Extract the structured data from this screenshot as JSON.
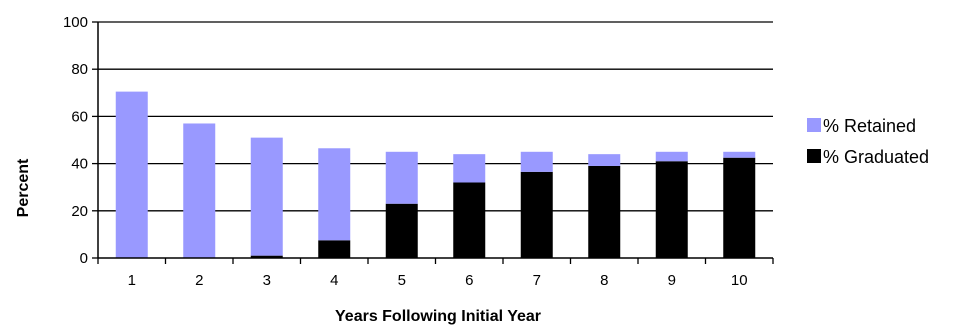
{
  "chart_data": {
    "type": "bar",
    "stacked": true,
    "categories": [
      "1",
      "2",
      "3",
      "4",
      "5",
      "6",
      "7",
      "8",
      "9",
      "10"
    ],
    "series": [
      {
        "name": "% Graduated",
        "color": "#000000",
        "values": [
          0,
          0,
          1,
          7.5,
          23,
          32,
          36.5,
          39,
          41,
          42.5
        ]
      },
      {
        "name": "% Retained",
        "color": "#9999FF",
        "values": [
          70.5,
          57,
          50,
          39,
          22,
          12,
          8.5,
          5,
          4,
          2.5
        ]
      }
    ],
    "xlabel": "Years Following Initial Year",
    "ylabel": "Percent",
    "ylim": [
      0,
      100
    ],
    "yticks": [
      0,
      20,
      40,
      60,
      80,
      100
    ],
    "grid": true,
    "legend": "right"
  }
}
